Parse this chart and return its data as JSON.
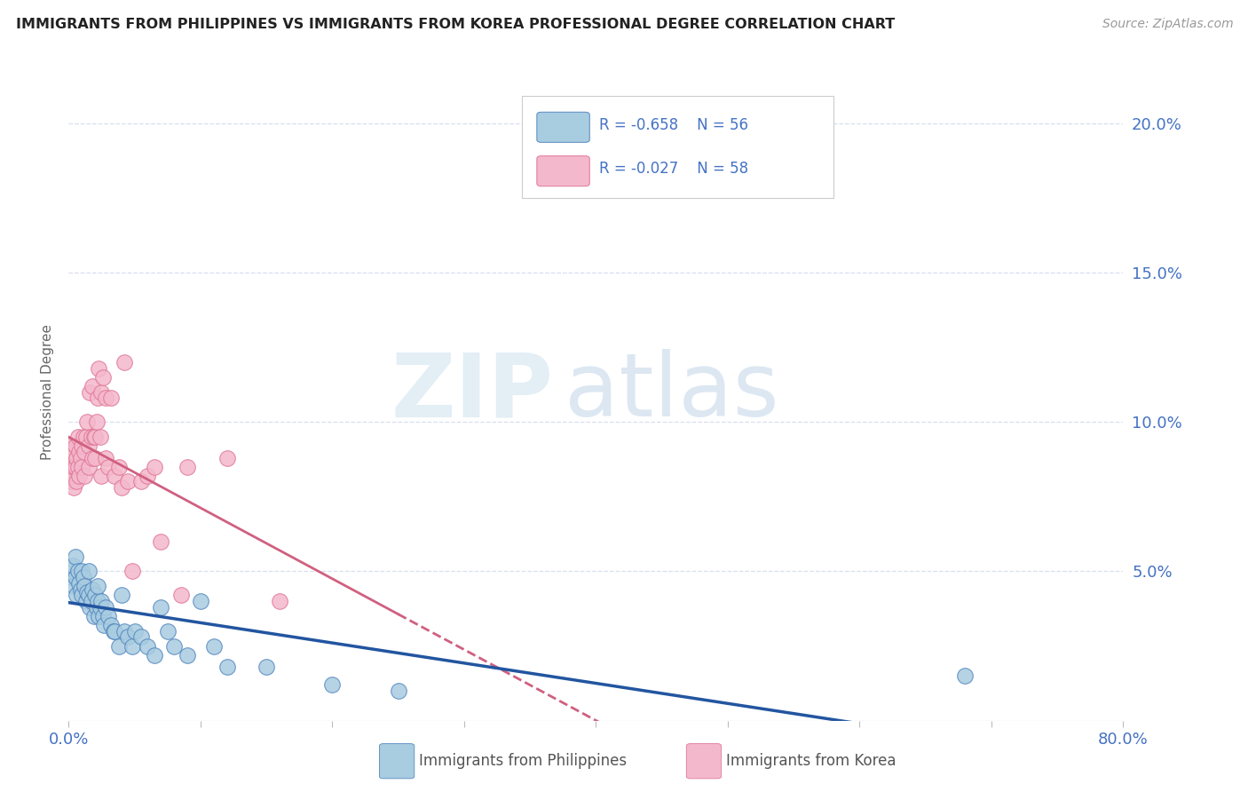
{
  "title": "IMMIGRANTS FROM PHILIPPINES VS IMMIGRANTS FROM KOREA PROFESSIONAL DEGREE CORRELATION CHART",
  "source": "Source: ZipAtlas.com",
  "ylabel": "Professional Degree",
  "xlim": [
    0.0,
    0.8
  ],
  "ylim": [
    0.0,
    0.22
  ],
  "yticks": [
    0.0,
    0.05,
    0.1,
    0.15,
    0.2
  ],
  "ytick_labels": [
    "",
    "5.0%",
    "10.0%",
    "15.0%",
    "20.0%"
  ],
  "legend_r_philippines": "-0.658",
  "legend_n_philippines": "56",
  "legend_r_korea": "-0.027",
  "legend_n_korea": "58",
  "philippines_color": "#a8cce0",
  "korea_color": "#f4b8cc",
  "philippines_edge_color": "#5588c0",
  "korea_edge_color": "#e07898",
  "philippines_line_color": "#2255a0",
  "korea_line_color": "#d06080",
  "grid_color": "#d8dff0",
  "philippines_scatter_x": [
    0.001,
    0.002,
    0.003,
    0.004,
    0.005,
    0.005,
    0.006,
    0.007,
    0.008,
    0.009,
    0.01,
    0.01,
    0.011,
    0.012,
    0.013,
    0.014,
    0.015,
    0.015,
    0.016,
    0.017,
    0.018,
    0.019,
    0.02,
    0.021,
    0.022,
    0.022,
    0.023,
    0.024,
    0.025,
    0.026,
    0.027,
    0.028,
    0.03,
    0.032,
    0.034,
    0.035,
    0.038,
    0.04,
    0.042,
    0.045,
    0.048,
    0.05,
    0.055,
    0.06,
    0.065,
    0.07,
    0.075,
    0.08,
    0.09,
    0.1,
    0.11,
    0.12,
    0.15,
    0.2,
    0.25,
    0.68
  ],
  "philippines_scatter_y": [
    0.05,
    0.048,
    0.052,
    0.045,
    0.055,
    0.048,
    0.042,
    0.05,
    0.046,
    0.044,
    0.05,
    0.042,
    0.048,
    0.045,
    0.04,
    0.043,
    0.05,
    0.042,
    0.038,
    0.04,
    0.044,
    0.035,
    0.042,
    0.038,
    0.04,
    0.045,
    0.035,
    0.038,
    0.04,
    0.035,
    0.032,
    0.038,
    0.035,
    0.032,
    0.03,
    0.03,
    0.025,
    0.042,
    0.03,
    0.028,
    0.025,
    0.03,
    0.028,
    0.025,
    0.022,
    0.038,
    0.03,
    0.025,
    0.022,
    0.04,
    0.025,
    0.018,
    0.018,
    0.012,
    0.01,
    0.015
  ],
  "korea_scatter_x": [
    0.001,
    0.001,
    0.002,
    0.002,
    0.003,
    0.003,
    0.004,
    0.004,
    0.005,
    0.005,
    0.006,
    0.006,
    0.007,
    0.007,
    0.008,
    0.008,
    0.009,
    0.01,
    0.01,
    0.011,
    0.012,
    0.012,
    0.013,
    0.014,
    0.015,
    0.015,
    0.016,
    0.017,
    0.018,
    0.018,
    0.019,
    0.02,
    0.02,
    0.021,
    0.022,
    0.023,
    0.024,
    0.025,
    0.025,
    0.026,
    0.028,
    0.028,
    0.03,
    0.032,
    0.035,
    0.038,
    0.04,
    0.042,
    0.045,
    0.048,
    0.055,
    0.06,
    0.065,
    0.07,
    0.085,
    0.09,
    0.12,
    0.16
  ],
  "korea_scatter_y": [
    0.085,
    0.092,
    0.088,
    0.08,
    0.09,
    0.082,
    0.085,
    0.078,
    0.092,
    0.085,
    0.088,
    0.08,
    0.095,
    0.085,
    0.09,
    0.082,
    0.088,
    0.092,
    0.085,
    0.095,
    0.09,
    0.082,
    0.095,
    0.1,
    0.092,
    0.085,
    0.11,
    0.095,
    0.112,
    0.088,
    0.095,
    0.088,
    0.095,
    0.1,
    0.108,
    0.118,
    0.095,
    0.11,
    0.082,
    0.115,
    0.108,
    0.088,
    0.085,
    0.108,
    0.082,
    0.085,
    0.078,
    0.12,
    0.08,
    0.05,
    0.08,
    0.082,
    0.085,
    0.06,
    0.042,
    0.085,
    0.088,
    0.04
  ]
}
